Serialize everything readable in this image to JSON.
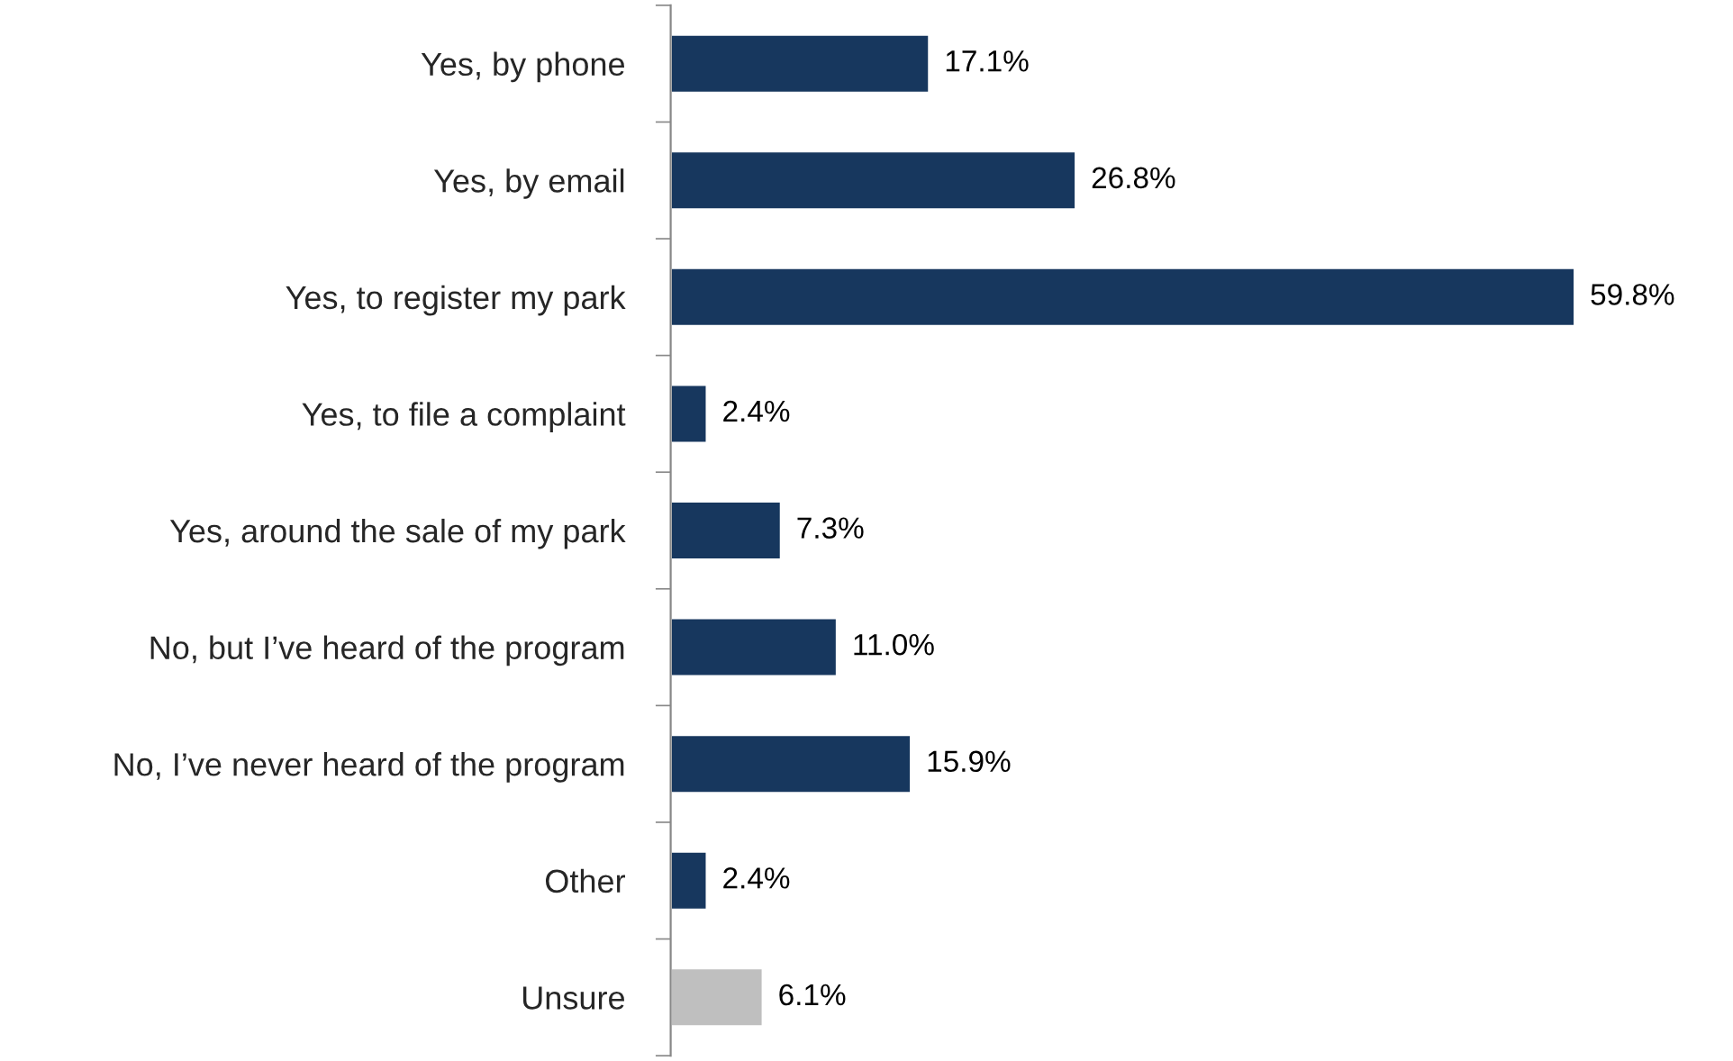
{
  "chart_data": {
    "type": "bar",
    "orientation": "horizontal",
    "categories": [
      "Yes, by phone",
      "Yes, by email",
      "Yes, to register my park",
      "Yes, to file a complaint",
      "Yes, around the sale of my park",
      "No, but I’ve heard of the program",
      "No, I’ve never heard of the program",
      "Other",
      "Unsure"
    ],
    "values": [
      17.1,
      26.8,
      59.8,
      2.4,
      7.3,
      11.0,
      15.9,
      2.4,
      6.1
    ],
    "value_labels": [
      "17.1%",
      "26.8%",
      "59.8%",
      "2.4%",
      "7.3%",
      "11.0%",
      "15.9%",
      "2.4%",
      "6.1%"
    ],
    "colors": [
      "#17375e",
      "#17375e",
      "#17375e",
      "#17375e",
      "#17375e",
      "#17375e",
      "#17375e",
      "#17375e",
      "#bfbfbf"
    ],
    "grid": false,
    "legend": false
  }
}
